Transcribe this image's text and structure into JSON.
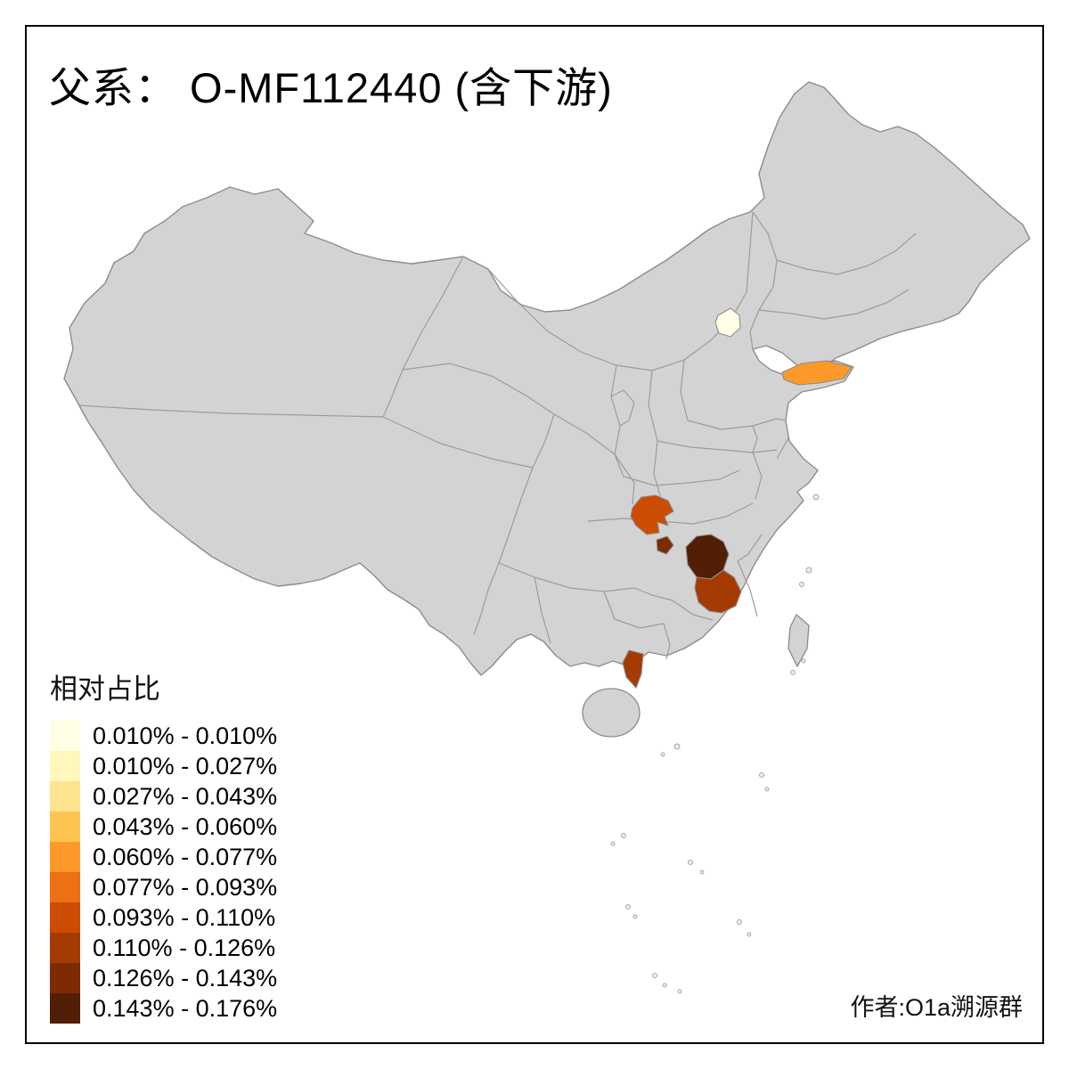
{
  "title": "父系： O-MF112440 (含下游)",
  "credit": "作者:O1a溯源群",
  "legend": {
    "title": "相对占比",
    "items": [
      {
        "color": "#FFFFE5",
        "label": "0.010% - 0.010%"
      },
      {
        "color": "#FFF7BC",
        "label": "0.010% - 0.027%"
      },
      {
        "color": "#FEE391",
        "label": "0.027% - 0.043%"
      },
      {
        "color": "#FEC44F",
        "label": "0.043% - 0.060%"
      },
      {
        "color": "#FE9929",
        "label": "0.060% - 0.077%"
      },
      {
        "color": "#EC7014",
        "label": "0.077% - 0.093%"
      },
      {
        "color": "#CC4C02",
        "label": "0.093% - 0.110%"
      },
      {
        "color": "#A63A03",
        "label": "0.110% - 0.126%"
      },
      {
        "color": "#7E2B04",
        "label": "0.126% - 0.143%"
      },
      {
        "color": "#521E05",
        "label": "0.143% - 0.176%"
      }
    ]
  },
  "map": {
    "base_fill": "#D3D3D3",
    "border_color": "#909090",
    "highlighted_regions": [
      {
        "id": "area-north-small",
        "color": "#FFFFE5",
        "bin_label": "0.010% - 0.010%"
      },
      {
        "id": "area-east-peninsula",
        "color": "#FE9929",
        "bin_label": "0.060% - 0.077%"
      },
      {
        "id": "area-southwest",
        "color": "#CC4C02",
        "bin_label": "0.093% - 0.110%"
      },
      {
        "id": "area-southwest-small",
        "color": "#7E2B04",
        "bin_label": "0.126% - 0.143%"
      },
      {
        "id": "area-south-central-dark",
        "color": "#521E05",
        "bin_label": "0.143% - 0.176%"
      },
      {
        "id": "area-south-central",
        "color": "#A63A03",
        "bin_label": "0.110% - 0.126%"
      },
      {
        "id": "area-south-peninsula",
        "color": "#A63A03",
        "bin_label": "0.110% - 0.126%"
      }
    ]
  },
  "chart_data": {
    "type": "choropleth",
    "title": "父系： O-MF112440 (含下游)",
    "legend_title": "相对占比",
    "bins": [
      "0.010% - 0.010%",
      "0.010% - 0.027%",
      "0.027% - 0.043%",
      "0.043% - 0.060%",
      "0.060% - 0.077%",
      "0.077% - 0.093%",
      "0.093% - 0.110%",
      "0.110% - 0.126%",
      "0.126% - 0.143%",
      "0.143% - 0.176%"
    ],
    "palette": [
      "#FFFFE5",
      "#FFF7BC",
      "#FEE391",
      "#FEC44F",
      "#FE9929",
      "#EC7014",
      "#CC4C02",
      "#A63A03",
      "#7E2B04",
      "#521E05"
    ],
    "shaded_area_count": 7,
    "unshaded_fill": "#D3D3D3"
  }
}
